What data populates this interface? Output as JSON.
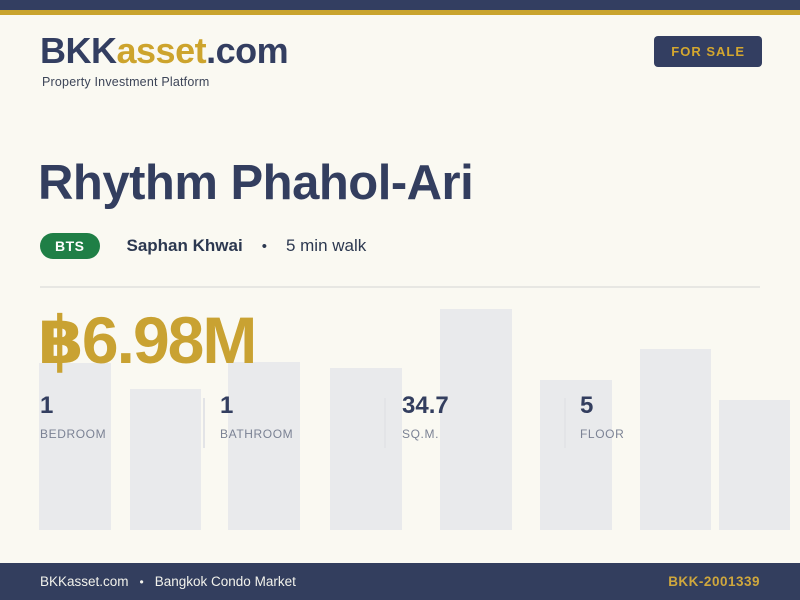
{
  "brand": {
    "logo_prefix": "BKK",
    "logo_accent": "asset",
    "logo_suffix": ".com",
    "tagline": "Property Investment Platform",
    "badge": "FOR SALE"
  },
  "listing": {
    "title": "Rhythm Phahol-Ari",
    "transit": {
      "system": "BTS",
      "station": "Saphan Khwai",
      "separator": "•",
      "walk_time": "5 min walk"
    },
    "price": "฿6.98M",
    "stats": [
      {
        "value": "1",
        "label": "BEDROOM"
      },
      {
        "value": "1",
        "label": "BATHROOM"
      },
      {
        "value": "34.7",
        "label": "SQ.M."
      },
      {
        "value": "5",
        "label": "FLOOR"
      }
    ]
  },
  "footer": {
    "site": "BKKasset.com",
    "separator": "•",
    "market": "Bangkok Condo Market",
    "reference": "BKK-2001339"
  },
  "colors": {
    "navy": "#333e61",
    "gold": "#c9a42e",
    "price_gold": "#c9a232",
    "green": "#1f7f46",
    "cream_background": "#faf9f2",
    "bar_gray": "#e9eaec",
    "label_gray": "#7b8294"
  }
}
